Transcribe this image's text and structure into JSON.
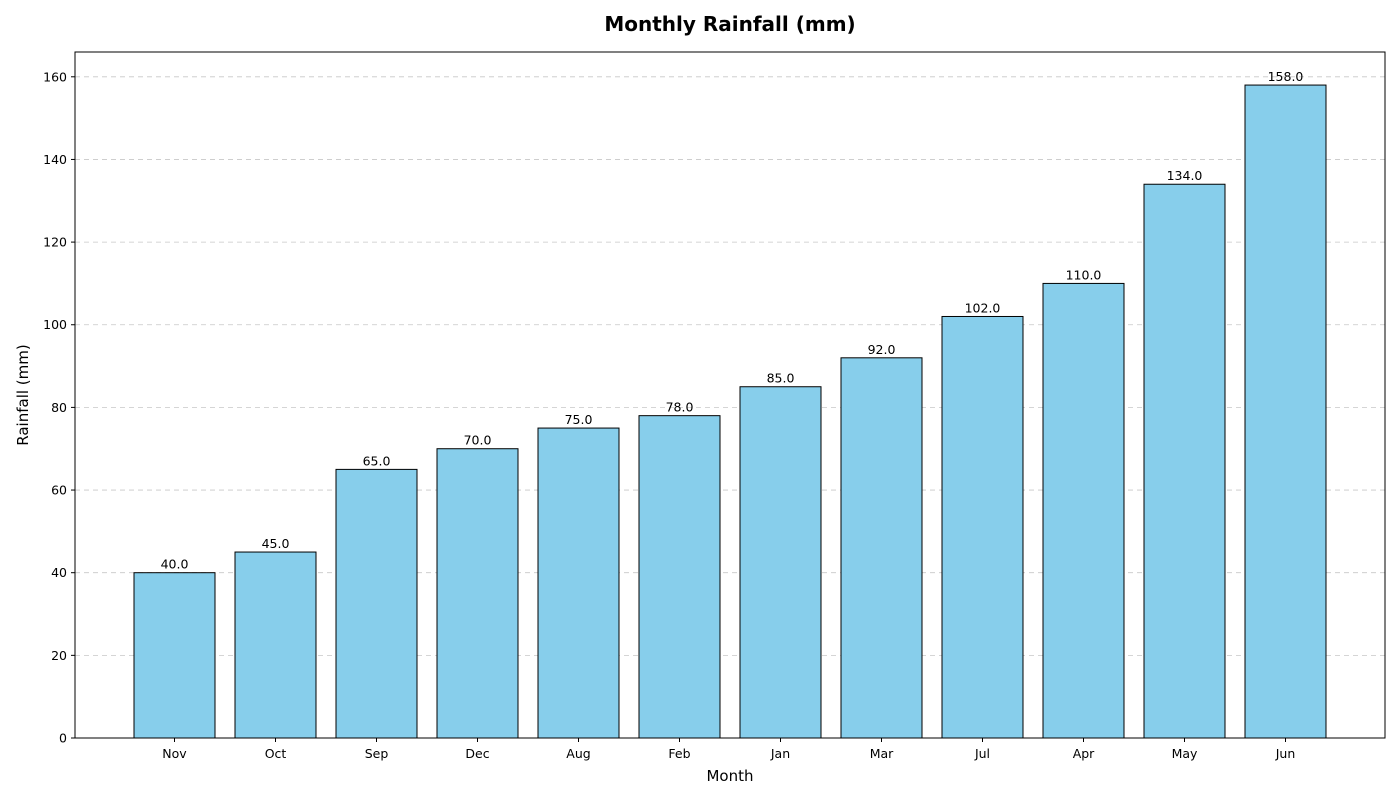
{
  "chart_data": {
    "type": "bar",
    "title": "Monthly Rainfall (mm)",
    "xlabel": "Month",
    "ylabel": "Rainfall (mm)",
    "categories": [
      "Nov",
      "Oct",
      "Sep",
      "Dec",
      "Aug",
      "Feb",
      "Jan",
      "Mar",
      "Jul",
      "Apr",
      "May",
      "Jun"
    ],
    "values": [
      40.0,
      45.0,
      65.0,
      70.0,
      75.0,
      78.0,
      85.0,
      92.0,
      102.0,
      110.0,
      134.0,
      158.0
    ],
    "value_labels": [
      "40.0",
      "45.0",
      "65.0",
      "70.0",
      "75.0",
      "78.0",
      "85.0",
      "92.0",
      "102.0",
      "110.0",
      "134.0",
      "158.0"
    ],
    "ylim": [
      0,
      166
    ],
    "yticks": [
      0,
      20,
      40,
      60,
      80,
      100,
      120,
      140,
      160
    ],
    "grid": "y-dashed",
    "legend": "none",
    "colors": {
      "bar_fill": "#87ceeb",
      "bar_edge": "#000000"
    }
  }
}
